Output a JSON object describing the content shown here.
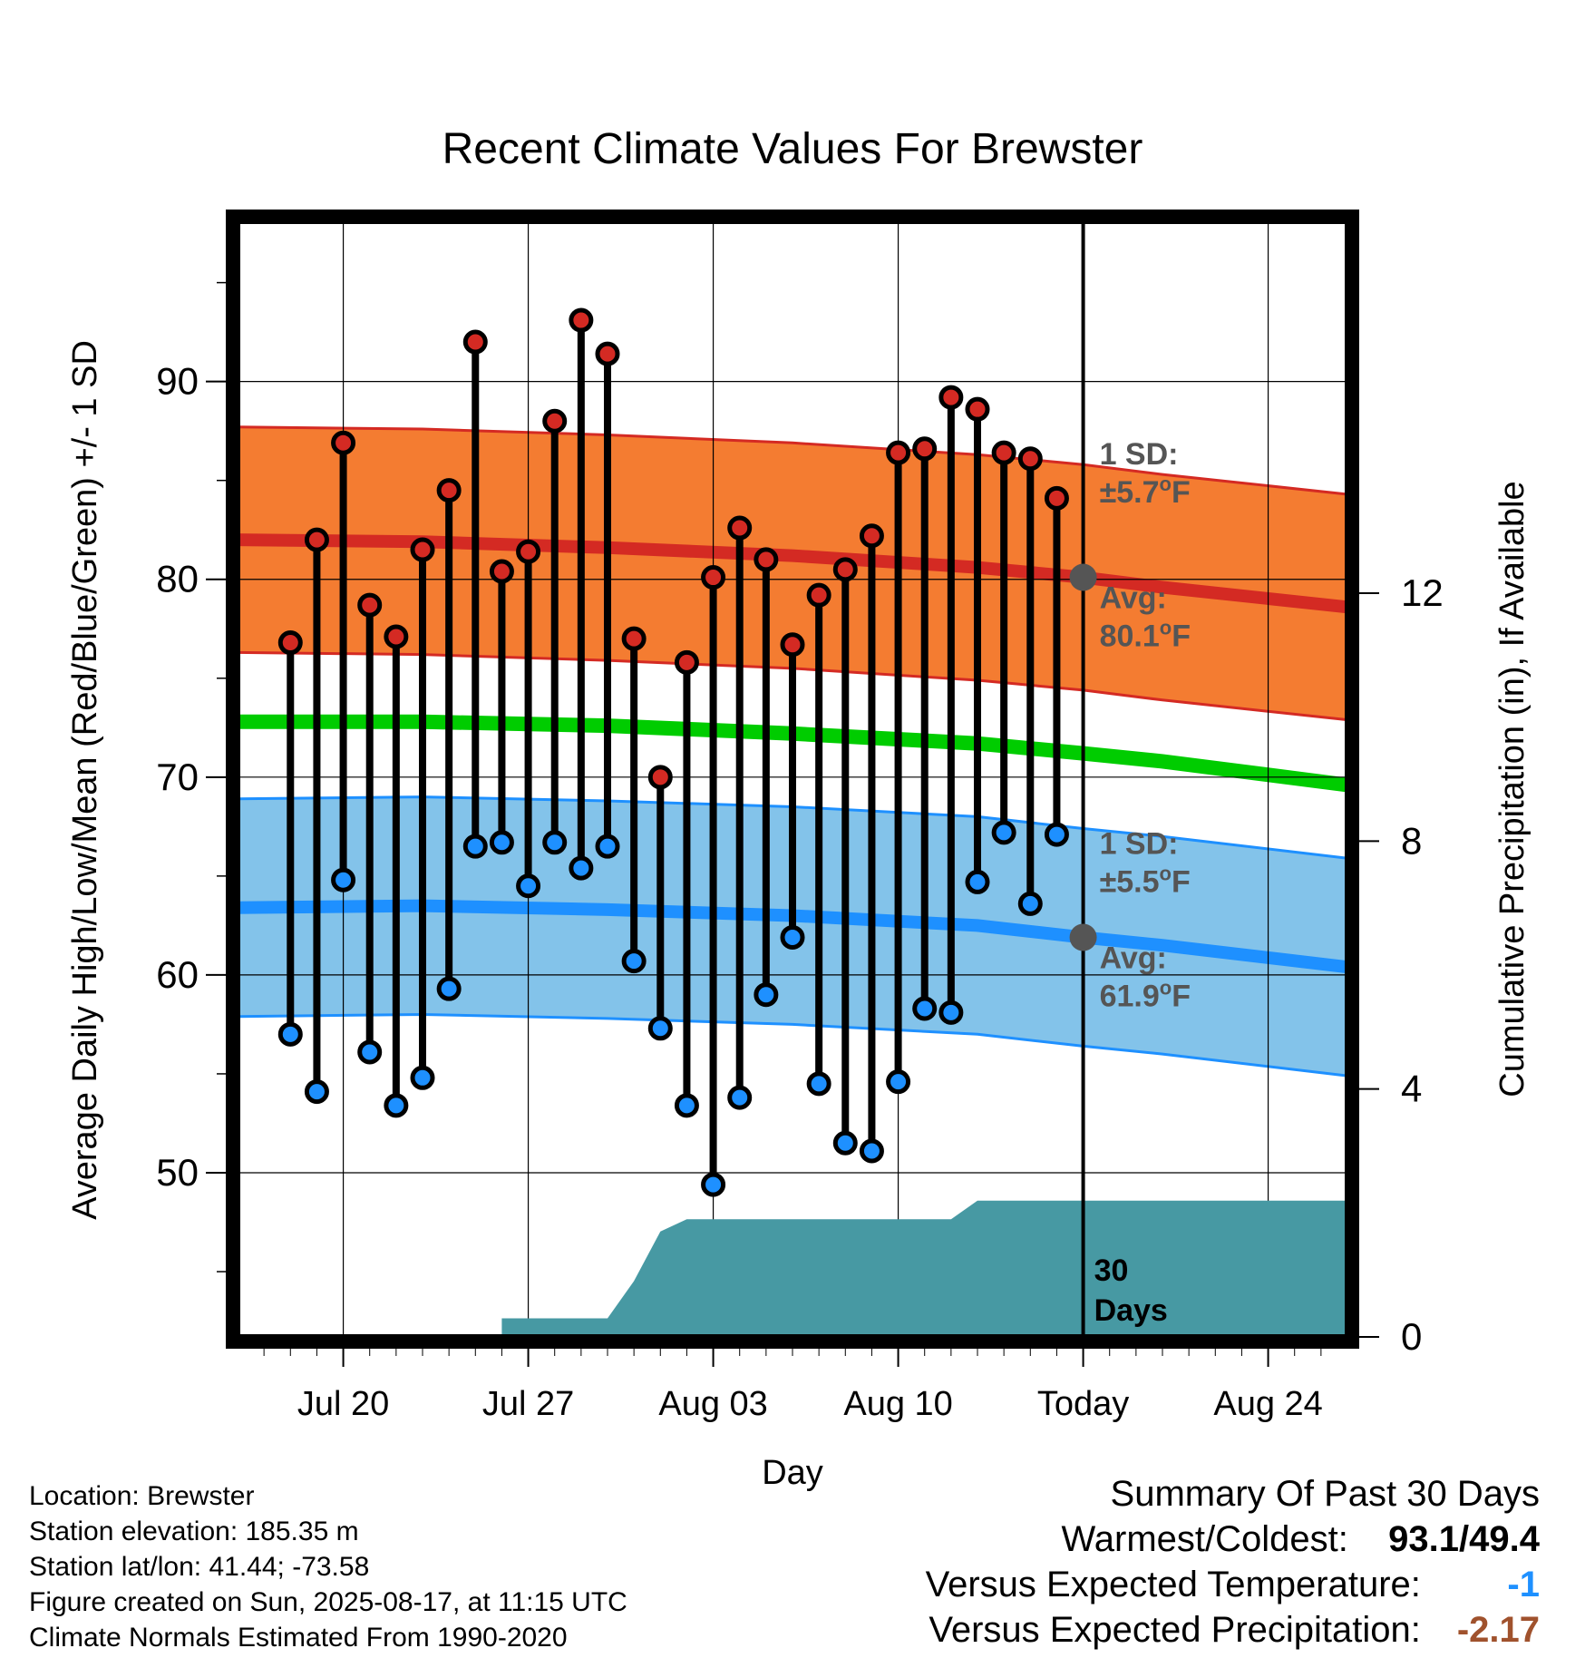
{
  "chart_data": {
    "type": "line",
    "title": "Recent Climate Values For Brewster",
    "xlabel": "Day",
    "ylabel": "Average Daily High/Low/Mean (Red/Blue/Green) +/- 1 SD",
    "y2label": "Cumulative Precipitation (in), If Available",
    "xlim": [
      "2025-07-16",
      "2025-08-27"
    ],
    "ylim": [
      41.7,
      98.1
    ],
    "y2lim": [
      0,
      18
    ],
    "x_ticks": [
      {
        "date": "2025-07-20",
        "label": "Jul 20"
      },
      {
        "date": "2025-07-27",
        "label": "Jul 27"
      },
      {
        "date": "2025-08-03",
        "label": "Aug 03"
      },
      {
        "date": "2025-08-10",
        "label": "Aug 10"
      },
      {
        "date": "2025-08-17",
        "label": "Today"
      },
      {
        "date": "2025-08-24",
        "label": "Aug 24"
      }
    ],
    "y_ticks": [
      50,
      60,
      70,
      80,
      90
    ],
    "y2_ticks": [
      0,
      4,
      8,
      12
    ],
    "grid": true,
    "today": "2025-08-17",
    "observations": {
      "dates": [
        "2025-07-18",
        "2025-07-19",
        "2025-07-20",
        "2025-07-21",
        "2025-07-22",
        "2025-07-23",
        "2025-07-24",
        "2025-07-25",
        "2025-07-26",
        "2025-07-27",
        "2025-07-28",
        "2025-07-29",
        "2025-07-30",
        "2025-07-31",
        "2025-08-01",
        "2025-08-02",
        "2025-08-03",
        "2025-08-04",
        "2025-08-05",
        "2025-08-06",
        "2025-08-07",
        "2025-08-08",
        "2025-08-09",
        "2025-08-10",
        "2025-08-11",
        "2025-08-12",
        "2025-08-13",
        "2025-08-14",
        "2025-08-15",
        "2025-08-16"
      ],
      "highs": [
        76.8,
        82.0,
        86.9,
        78.7,
        77.1,
        81.5,
        84.5,
        92.0,
        80.4,
        81.4,
        88.0,
        93.1,
        91.4,
        77.0,
        70.0,
        75.8,
        80.1,
        82.6,
        81.0,
        76.7,
        79.2,
        80.5,
        82.2,
        86.4,
        86.6,
        89.2,
        88.6,
        86.4,
        86.1,
        84.1
      ],
      "lows": [
        57.0,
        54.1,
        64.8,
        56.1,
        53.4,
        54.8,
        59.3,
        66.5,
        66.7,
        64.5,
        66.7,
        65.4,
        66.5,
        60.7,
        57.3,
        53.4,
        49.4,
        53.8,
        59.0,
        61.9,
        54.5,
        51.5,
        51.1,
        54.6,
        58.3,
        58.1,
        64.7,
        67.2,
        63.6,
        67.1
      ]
    },
    "normals": {
      "dates": [
        "2025-07-16",
        "2025-07-23",
        "2025-07-30",
        "2025-08-06",
        "2025-08-13",
        "2025-08-17",
        "2025-08-20",
        "2025-08-27"
      ],
      "high_mean": [
        82.0,
        81.9,
        81.6,
        81.2,
        80.6,
        80.1,
        79.6,
        78.6
      ],
      "high_sd": 5.7,
      "mean": [
        72.8,
        72.8,
        72.6,
        72.2,
        71.7,
        71.2,
        70.8,
        69.6
      ],
      "low_mean": [
        63.4,
        63.5,
        63.3,
        63.0,
        62.5,
        61.9,
        61.5,
        60.4
      ],
      "low_sd": 5.5
    },
    "precipitation": {
      "dates": [
        "2025-07-16",
        "2025-07-26",
        "2025-07-26",
        "2025-07-30",
        "2025-07-31",
        "2025-08-01",
        "2025-08-02",
        "2025-08-12",
        "2025-08-13",
        "2025-08-27"
      ],
      "cumulative": [
        0,
        0,
        0.3,
        0.3,
        0.9,
        1.7,
        1.9,
        1.9,
        2.2,
        2.2
      ]
    },
    "annotations": {
      "high_sd_label": "1 SD:",
      "high_sd_value": "±5.7",
      "high_avg_label": "Avg:",
      "high_avg_value": "80.1",
      "low_sd_label": "1 SD:",
      "low_sd_value": "±5.5",
      "low_avg_label": "Avg:",
      "low_avg_value": "61.9",
      "degree_unit": "F",
      "degree_mark": "o",
      "precip_days_line1": "30",
      "precip_days_line2": "Days"
    },
    "colors": {
      "high_band": "#f47c31",
      "high_line": "#d42a23",
      "mean_line": "#00cc00",
      "low_band": "#83c3ea",
      "low_line": "#1e90ff",
      "precip": "#4799a3",
      "high_marker": "#d42a23",
      "low_marker": "#1e90ff",
      "annotation": "#555555"
    }
  },
  "footer": {
    "location": "Location: Brewster",
    "elevation": "Station elevation: 185.35 m",
    "latlon": "Station lat/lon: 41.44; -73.58",
    "created": "Figure created on Sun, 2025-08-17, at 11:15 UTC",
    "normals": "Climate Normals Estimated From 1990-2020"
  },
  "summary": {
    "heading": "Summary Of Past 30 Days",
    "warm_cold_label": "Warmest/Coldest:",
    "warm_cold_value": "93.1/49.4",
    "temp_label": "Versus Expected Temperature:",
    "temp_value": "-1",
    "temp_color": "#1e90ff",
    "precip_label": "Versus Expected Precipitation:",
    "precip_value": "-2.17",
    "precip_color": "#a0522d"
  }
}
